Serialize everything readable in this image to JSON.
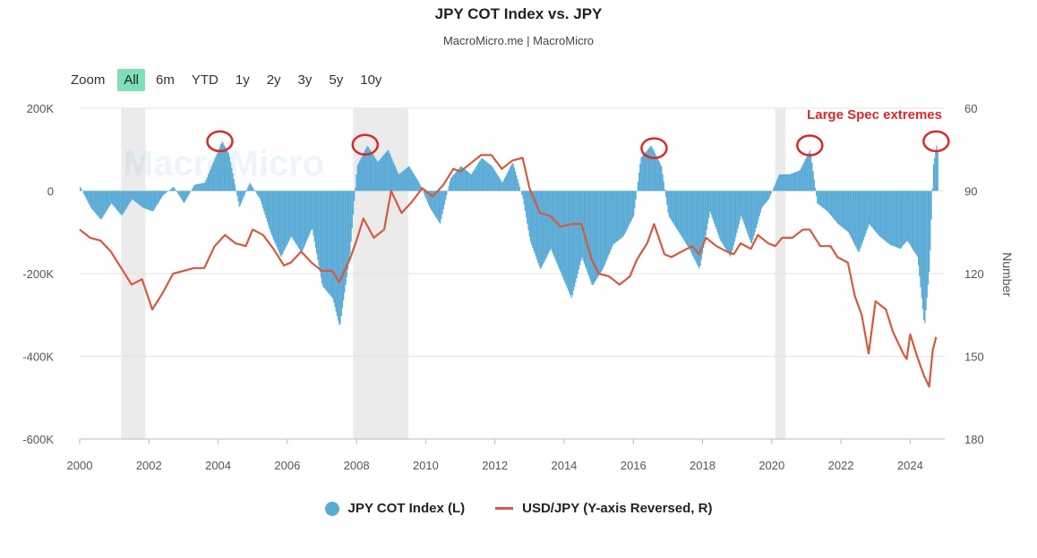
{
  "header": {
    "title": "JPY COT Index vs. JPY",
    "subtitle": "MacroMicro.me | MacroMicro"
  },
  "zoom": {
    "label": "Zoom",
    "buttons": [
      "All",
      "6m",
      "YTD",
      "1y",
      "2y",
      "3y",
      "5y",
      "10y"
    ],
    "active": "All"
  },
  "watermark": "MacroMicro",
  "annotation": "Large Spec extremes",
  "colors": {
    "cot": "#5aabd6",
    "usdjpy": "#d6593d",
    "shade": "#ebebeb",
    "annotation": "#d62a2a",
    "active_zoom": "#7ee0b8"
  },
  "chart_data": {
    "type": "area",
    "title": "JPY COT Index vs. JPY",
    "x_range": [
      2000,
      2025
    ],
    "x_ticks": [
      "2000",
      "2002",
      "2004",
      "2006",
      "2008",
      "2010",
      "2012",
      "2014",
      "2016",
      "2018",
      "2020",
      "2022",
      "2024"
    ],
    "y_left": {
      "range": [
        -600000,
        200000
      ],
      "ticks": [
        "200K",
        "0",
        "-200K",
        "-400K",
        "-600K"
      ]
    },
    "y_right": {
      "label": "Number",
      "range": [
        60,
        180
      ],
      "reversed": true,
      "ticks": [
        "60",
        "90",
        "120",
        "150",
        "180"
      ]
    },
    "shaded_periods": [
      [
        2001.2,
        2001.9
      ],
      [
        2007.9,
        2009.5
      ],
      [
        2020.1,
        2020.4
      ]
    ],
    "annotated_extremes": [
      2004.05,
      2008.25,
      2016.6,
      2021.1,
      2024.75
    ],
    "series": [
      {
        "name": "JPY COT Index (L)",
        "axis": "left",
        "points": [
          [
            2000.0,
            10000
          ],
          [
            2000.3,
            -40000
          ],
          [
            2000.6,
            -70000
          ],
          [
            2000.9,
            -30000
          ],
          [
            2001.2,
            -60000
          ],
          [
            2001.5,
            -20000
          ],
          [
            2001.8,
            -40000
          ],
          [
            2002.1,
            -50000
          ],
          [
            2002.4,
            -10000
          ],
          [
            2002.7,
            10000
          ],
          [
            2003.0,
            -30000
          ],
          [
            2003.3,
            15000
          ],
          [
            2003.6,
            20000
          ],
          [
            2003.9,
            80000
          ],
          [
            2004.1,
            120000
          ],
          [
            2004.3,
            90000
          ],
          [
            2004.6,
            -40000
          ],
          [
            2004.9,
            20000
          ],
          [
            2005.2,
            -20000
          ],
          [
            2005.5,
            -100000
          ],
          [
            2005.8,
            -160000
          ],
          [
            2006.1,
            -110000
          ],
          [
            2006.4,
            -150000
          ],
          [
            2006.7,
            -90000
          ],
          [
            2007.0,
            -230000
          ],
          [
            2007.3,
            -260000
          ],
          [
            2007.5,
            -330000
          ],
          [
            2007.8,
            -150000
          ],
          [
            2008.0,
            60000
          ],
          [
            2008.3,
            110000
          ],
          [
            2008.6,
            70000
          ],
          [
            2008.9,
            100000
          ],
          [
            2009.2,
            40000
          ],
          [
            2009.5,
            60000
          ],
          [
            2009.8,
            20000
          ],
          [
            2010.1,
            -40000
          ],
          [
            2010.4,
            -80000
          ],
          [
            2010.7,
            30000
          ],
          [
            2011.0,
            60000
          ],
          [
            2011.3,
            40000
          ],
          [
            2011.6,
            80000
          ],
          [
            2011.9,
            60000
          ],
          [
            2012.2,
            20000
          ],
          [
            2012.5,
            70000
          ],
          [
            2012.8,
            -20000
          ],
          [
            2013.0,
            -120000
          ],
          [
            2013.3,
            -190000
          ],
          [
            2013.6,
            -140000
          ],
          [
            2013.9,
            -200000
          ],
          [
            2014.2,
            -260000
          ],
          [
            2014.5,
            -160000
          ],
          [
            2014.8,
            -230000
          ],
          [
            2015.1,
            -190000
          ],
          [
            2015.4,
            -130000
          ],
          [
            2015.7,
            -110000
          ],
          [
            2016.0,
            -60000
          ],
          [
            2016.2,
            80000
          ],
          [
            2016.5,
            110000
          ],
          [
            2016.8,
            60000
          ],
          [
            2017.0,
            -60000
          ],
          [
            2017.3,
            -100000
          ],
          [
            2017.6,
            -140000
          ],
          [
            2017.9,
            -190000
          ],
          [
            2018.2,
            -50000
          ],
          [
            2018.5,
            -120000
          ],
          [
            2018.8,
            -160000
          ],
          [
            2019.1,
            -60000
          ],
          [
            2019.4,
            -130000
          ],
          [
            2019.7,
            -40000
          ],
          [
            2019.9,
            -20000
          ],
          [
            2020.2,
            40000
          ],
          [
            2020.5,
            40000
          ],
          [
            2020.8,
            50000
          ],
          [
            2021.1,
            100000
          ],
          [
            2021.3,
            -30000
          ],
          [
            2021.6,
            -50000
          ],
          [
            2021.9,
            -80000
          ],
          [
            2022.2,
            -100000
          ],
          [
            2022.5,
            -150000
          ],
          [
            2022.8,
            -80000
          ],
          [
            2023.1,
            -110000
          ],
          [
            2023.4,
            -130000
          ],
          [
            2023.7,
            -140000
          ],
          [
            2023.9,
            -120000
          ],
          [
            2024.2,
            -160000
          ],
          [
            2024.4,
            -330000
          ],
          [
            2024.55,
            -180000
          ],
          [
            2024.65,
            60000
          ],
          [
            2024.75,
            110000
          ],
          [
            2024.8,
            90000
          ]
        ]
      },
      {
        "name": "USD/JPY (Y-axis Reversed, R)",
        "axis": "right",
        "points": [
          [
            2000.0,
            104
          ],
          [
            2000.3,
            107
          ],
          [
            2000.6,
            108
          ],
          [
            2000.9,
            112
          ],
          [
            2001.2,
            118
          ],
          [
            2001.5,
            124
          ],
          [
            2001.8,
            122
          ],
          [
            2002.1,
            133
          ],
          [
            2002.4,
            127
          ],
          [
            2002.7,
            120
          ],
          [
            2003.0,
            119
          ],
          [
            2003.3,
            118
          ],
          [
            2003.6,
            118
          ],
          [
            2003.9,
            110
          ],
          [
            2004.2,
            106
          ],
          [
            2004.5,
            109
          ],
          [
            2004.8,
            110
          ],
          [
            2005.0,
            104
          ],
          [
            2005.3,
            106
          ],
          [
            2005.6,
            111
          ],
          [
            2005.9,
            117
          ],
          [
            2006.1,
            116
          ],
          [
            2006.4,
            112
          ],
          [
            2006.7,
            116
          ],
          [
            2007.0,
            119
          ],
          [
            2007.3,
            119
          ],
          [
            2007.5,
            123
          ],
          [
            2007.8,
            115
          ],
          [
            2008.0,
            108
          ],
          [
            2008.2,
            100
          ],
          [
            2008.5,
            107
          ],
          [
            2008.8,
            104
          ],
          [
            2009.0,
            90
          ],
          [
            2009.3,
            98
          ],
          [
            2009.6,
            94
          ],
          [
            2009.9,
            89
          ],
          [
            2010.2,
            92
          ],
          [
            2010.5,
            88
          ],
          [
            2010.8,
            82
          ],
          [
            2011.0,
            83
          ],
          [
            2011.3,
            80
          ],
          [
            2011.6,
            77
          ],
          [
            2011.9,
            77
          ],
          [
            2012.2,
            82
          ],
          [
            2012.5,
            79
          ],
          [
            2012.8,
            78
          ],
          [
            2013.0,
            89
          ],
          [
            2013.3,
            98
          ],
          [
            2013.6,
            99
          ],
          [
            2013.9,
            103
          ],
          [
            2014.2,
            102
          ],
          [
            2014.5,
            102
          ],
          [
            2014.8,
            115
          ],
          [
            2015.0,
            120
          ],
          [
            2015.3,
            121
          ],
          [
            2015.6,
            124
          ],
          [
            2015.9,
            121
          ],
          [
            2016.1,
            115
          ],
          [
            2016.4,
            109
          ],
          [
            2016.6,
            102
          ],
          [
            2016.9,
            113
          ],
          [
            2017.1,
            114
          ],
          [
            2017.4,
            112
          ],
          [
            2017.7,
            110
          ],
          [
            2017.9,
            113
          ],
          [
            2018.1,
            107
          ],
          [
            2018.4,
            110
          ],
          [
            2018.7,
            112
          ],
          [
            2018.9,
            113
          ],
          [
            2019.1,
            109
          ],
          [
            2019.4,
            111
          ],
          [
            2019.6,
            106
          ],
          [
            2019.9,
            109
          ],
          [
            2020.1,
            110
          ],
          [
            2020.3,
            107
          ],
          [
            2020.6,
            107
          ],
          [
            2020.9,
            104
          ],
          [
            2021.1,
            104
          ],
          [
            2021.4,
            110
          ],
          [
            2021.7,
            110
          ],
          [
            2021.9,
            114
          ],
          [
            2022.2,
            116
          ],
          [
            2022.4,
            128
          ],
          [
            2022.6,
            135
          ],
          [
            2022.8,
            149
          ],
          [
            2023.0,
            130
          ],
          [
            2023.3,
            133
          ],
          [
            2023.5,
            141
          ],
          [
            2023.8,
            149
          ],
          [
            2023.9,
            151
          ],
          [
            2024.0,
            142
          ],
          [
            2024.2,
            150
          ],
          [
            2024.4,
            157
          ],
          [
            2024.55,
            161
          ],
          [
            2024.65,
            148
          ],
          [
            2024.75,
            143
          ]
        ]
      }
    ]
  }
}
